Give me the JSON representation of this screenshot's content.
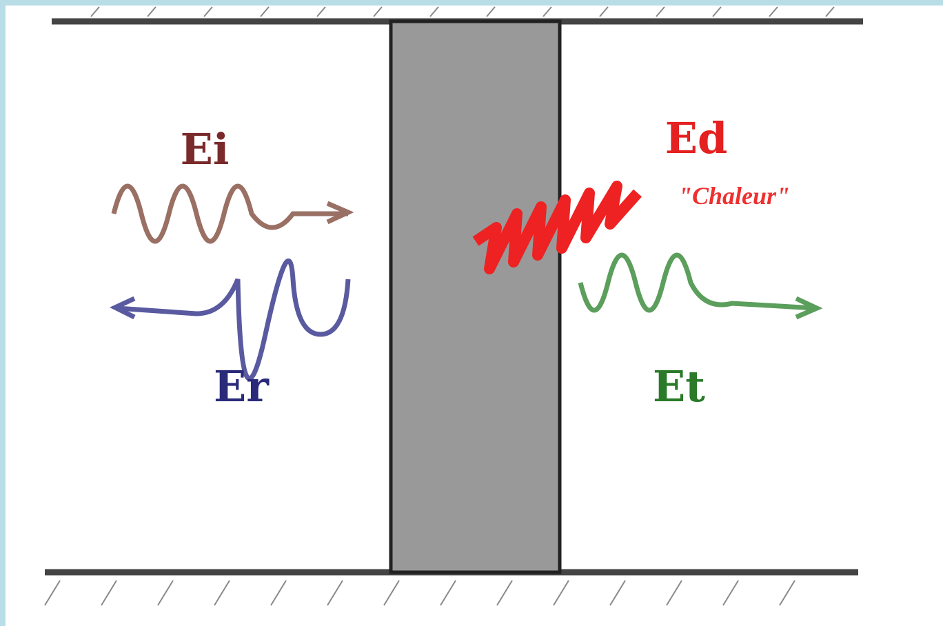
{
  "waves": [
    {
      "label": "Ei"
    },
    {
      "label": "Er"
    },
    {
      "label": "Ed",
      "note": "\"Chaleur\""
    },
    {
      "label": "Et"
    }
  ]
}
